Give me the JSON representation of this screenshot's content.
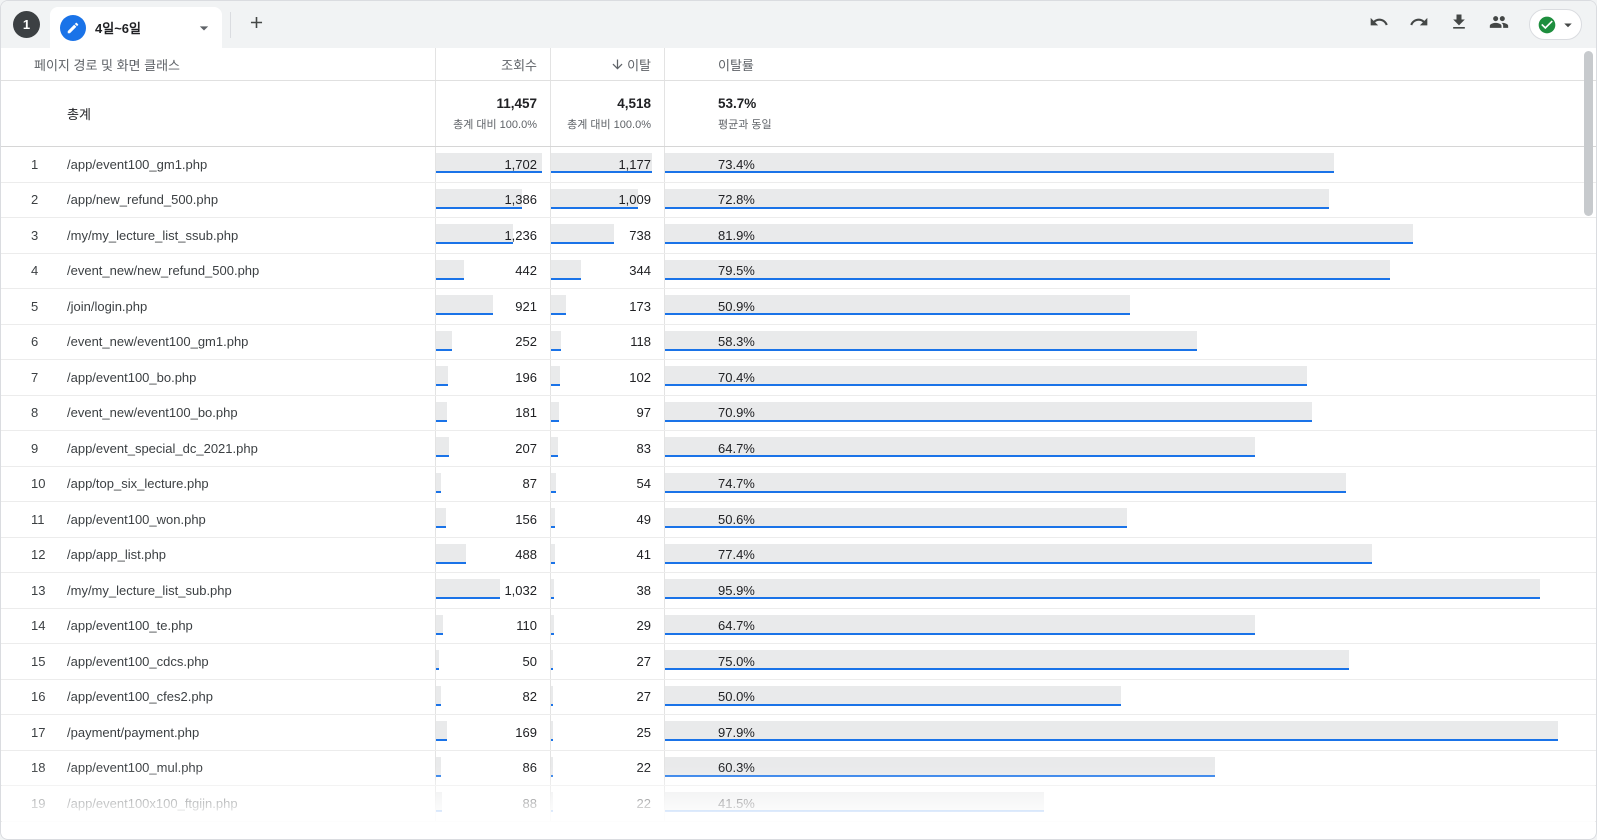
{
  "toolbar": {
    "step_number": "1",
    "tab_label": "4일~6일",
    "icons": {
      "tab_edit": "edit-pencil-icon",
      "tab_caret": "chevron-down-icon",
      "add_tab": "plus-icon",
      "right": [
        "undo-icon",
        "redo-icon",
        "download-icon",
        "share-users-icon",
        "check-circle-icon",
        "chevron-down-icon"
      ]
    }
  },
  "colors": {
    "accent_blue": "#1a73e8",
    "bar_gray": "#e9eaeb",
    "check_green": "#1e8e3e",
    "toolbar_gray": "#f1f3f4",
    "step_circle": "#3c4043"
  },
  "table": {
    "columns": {
      "path": "페이지 경로 및 화면 클래스",
      "views": "조회수",
      "exits": "이탈",
      "exit_rate": "이탈률"
    },
    "sort": {
      "column": "exits",
      "direction": "desc"
    },
    "totals": {
      "label": "총계",
      "views": "11,457",
      "views_sub": "총계 대비 100.0%",
      "exits": "4,518",
      "exits_sub": "총계 대비 100.0%",
      "exit_rate": "53.7%",
      "exit_rate_sub": "평균과 동일"
    },
    "max": {
      "views": 1702,
      "exits": 1177,
      "exit_rate": 100
    },
    "rows": [
      {
        "rank": "1",
        "path": "/app/event100_gm1.php",
        "views": 1702,
        "views_display": "1,702",
        "exits": 1177,
        "exits_display": "1,177",
        "exit_rate": 73.4,
        "exit_rate_display": "73.4%"
      },
      {
        "rank": "2",
        "path": "/app/new_refund_500.php",
        "views": 1386,
        "views_display": "1,386",
        "exits": 1009,
        "exits_display": "1,009",
        "exit_rate": 72.8,
        "exit_rate_display": "72.8%"
      },
      {
        "rank": "3",
        "path": "/my/my_lecture_list_ssub.php",
        "views": 1236,
        "views_display": "1,236",
        "exits": 738,
        "exits_display": "738",
        "exit_rate": 81.9,
        "exit_rate_display": "81.9%"
      },
      {
        "rank": "4",
        "path": "/event_new/new_refund_500.php",
        "views": 442,
        "views_display": "442",
        "exits": 344,
        "exits_display": "344",
        "exit_rate": 79.5,
        "exit_rate_display": "79.5%"
      },
      {
        "rank": "5",
        "path": "/join/login.php",
        "views": 921,
        "views_display": "921",
        "exits": 173,
        "exits_display": "173",
        "exit_rate": 50.9,
        "exit_rate_display": "50.9%"
      },
      {
        "rank": "6",
        "path": "/event_new/event100_gm1.php",
        "views": 252,
        "views_display": "252",
        "exits": 118,
        "exits_display": "118",
        "exit_rate": 58.3,
        "exit_rate_display": "58.3%"
      },
      {
        "rank": "7",
        "path": "/app/event100_bo.php",
        "views": 196,
        "views_display": "196",
        "exits": 102,
        "exits_display": "102",
        "exit_rate": 70.4,
        "exit_rate_display": "70.4%"
      },
      {
        "rank": "8",
        "path": "/event_new/event100_bo.php",
        "views": 181,
        "views_display": "181",
        "exits": 97,
        "exits_display": "97",
        "exit_rate": 70.9,
        "exit_rate_display": "70.9%"
      },
      {
        "rank": "9",
        "path": "/app/event_special_dc_2021.php",
        "views": 207,
        "views_display": "207",
        "exits": 83,
        "exits_display": "83",
        "exit_rate": 64.7,
        "exit_rate_display": "64.7%"
      },
      {
        "rank": "10",
        "path": "/app/top_six_lecture.php",
        "views": 87,
        "views_display": "87",
        "exits": 54,
        "exits_display": "54",
        "exit_rate": 74.7,
        "exit_rate_display": "74.7%"
      },
      {
        "rank": "11",
        "path": "/app/event100_won.php",
        "views": 156,
        "views_display": "156",
        "exits": 49,
        "exits_display": "49",
        "exit_rate": 50.6,
        "exit_rate_display": "50.6%"
      },
      {
        "rank": "12",
        "path": "/app/app_list.php",
        "views": 488,
        "views_display": "488",
        "exits": 41,
        "exits_display": "41",
        "exit_rate": 77.4,
        "exit_rate_display": "77.4%"
      },
      {
        "rank": "13",
        "path": "/my/my_lecture_list_sub.php",
        "views": 1032,
        "views_display": "1,032",
        "exits": 38,
        "exits_display": "38",
        "exit_rate": 95.9,
        "exit_rate_display": "95.9%"
      },
      {
        "rank": "14",
        "path": "/app/event100_te.php",
        "views": 110,
        "views_display": "110",
        "exits": 29,
        "exits_display": "29",
        "exit_rate": 64.7,
        "exit_rate_display": "64.7%"
      },
      {
        "rank": "15",
        "path": "/app/event100_cdcs.php",
        "views": 50,
        "views_display": "50",
        "exits": 27,
        "exits_display": "27",
        "exit_rate": 75.0,
        "exit_rate_display": "75.0%"
      },
      {
        "rank": "16",
        "path": "/app/event100_cfes2.php",
        "views": 82,
        "views_display": "82",
        "exits": 27,
        "exits_display": "27",
        "exit_rate": 50.0,
        "exit_rate_display": "50.0%"
      },
      {
        "rank": "17",
        "path": "/payment/payment.php",
        "views": 169,
        "views_display": "169",
        "exits": 25,
        "exits_display": "25",
        "exit_rate": 97.9,
        "exit_rate_display": "97.9%"
      },
      {
        "rank": "18",
        "path": "/app/event100_mul.php",
        "views": 86,
        "views_display": "86",
        "exits": 22,
        "exits_display": "22",
        "exit_rate": 60.3,
        "exit_rate_display": "60.3%"
      },
      {
        "rank": "19",
        "path": "/app/event100x100_ftgijn.php",
        "views": 88,
        "views_display": "88",
        "exits": 22,
        "exits_display": "22",
        "exit_rate": 41.5,
        "exit_rate_display": "41.5%"
      }
    ]
  }
}
